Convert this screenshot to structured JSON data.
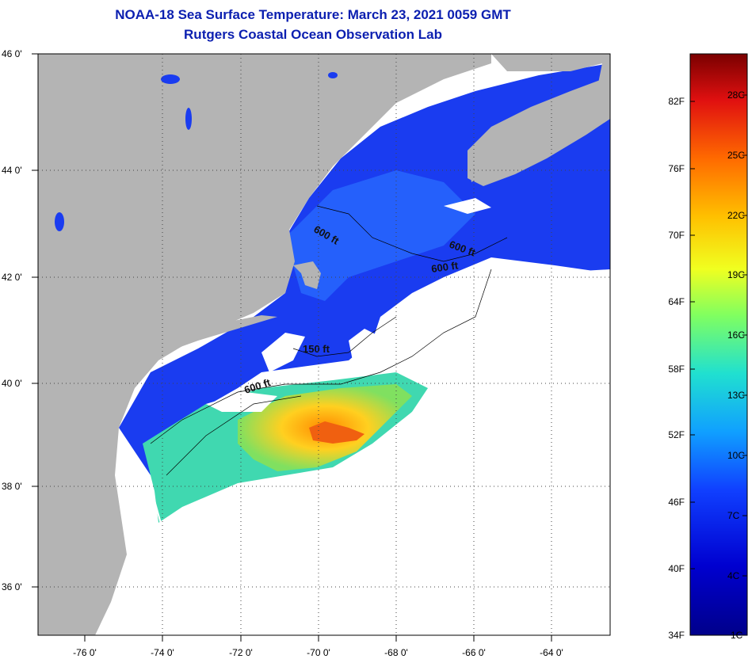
{
  "title": "NOAA-18 Sea Surface Temperature:  March 23, 2021 0059 GMT",
  "subtitle": "Rutgers Coastal Ocean Observation Lab",
  "map": {
    "lat_labels": [
      "46 0'",
      "44 0'",
      "42 0'",
      "40 0'",
      "38 0'",
      "36 0'"
    ],
    "lon_labels": [
      "-76 0'",
      "-74 0'",
      "-72 0'",
      "-70 0'",
      "-68 0'",
      "-66 0'",
      "-64 0'"
    ],
    "contour_labels": [
      "600 ft",
      "600 ft",
      "600 ft",
      "150 ft",
      "600 ft"
    ],
    "land_color": "#b4b4b4",
    "cloud_color": "#ffffff"
  },
  "colorbar": {
    "fahrenheit_labels": [
      "82F",
      "76F",
      "70F",
      "64F",
      "58F",
      "52F",
      "46F",
      "40F",
      "34F"
    ],
    "celsius_labels": [
      "28C",
      "25C",
      "22C",
      "19C",
      "16C",
      "13C",
      "10C",
      "7C",
      "4C",
      "1C"
    ],
    "colors": [
      "#7a0000",
      "#e01010",
      "#ff6a00",
      "#ffc000",
      "#f0ff20",
      "#80ff60",
      "#20e0d0",
      "#10a0ff",
      "#1040ff",
      "#0000d0",
      "#00008a"
    ]
  }
}
